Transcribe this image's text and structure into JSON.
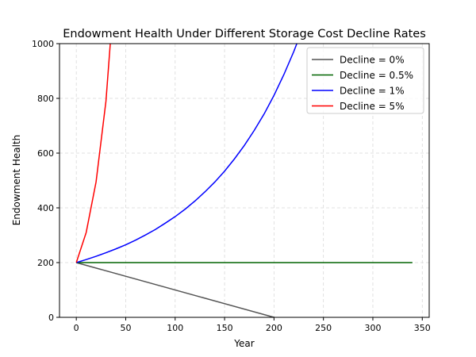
{
  "chart_data": {
    "type": "line",
    "title": "Endowment Health Under Different Storage Cost Decline Rates",
    "xlabel": "Year",
    "ylabel": "Endowment Health",
    "xlim": [
      -17,
      357
    ],
    "ylim": [
      0,
      1000
    ],
    "xticks": [
      0,
      50,
      100,
      150,
      200,
      250,
      300,
      350
    ],
    "yticks": [
      0,
      200,
      400,
      600,
      800,
      1000
    ],
    "grid": true,
    "grid_style": "dashed",
    "legend_position": "top-right",
    "series": [
      {
        "name": "Decline = 0%",
        "color": "#555555",
        "x": [
          0,
          200
        ],
        "y": [
          200,
          0
        ]
      },
      {
        "name": "Decline = 0.5%",
        "color": "#006400",
        "x": [
          0,
          340
        ],
        "y": [
          200,
          200
        ]
      },
      {
        "name": "Decline = 1%",
        "color": "#0000ff",
        "x": [
          0,
          10,
          20,
          30,
          40,
          50,
          60,
          70,
          80,
          90,
          100,
          110,
          120,
          130,
          140,
          150,
          160,
          170,
          180,
          190,
          200,
          210,
          220,
          230
        ],
        "y": [
          200,
          211,
          223,
          236,
          250,
          265,
          282,
          301,
          321,
          344,
          368,
          395,
          425,
          458,
          494,
          534,
          579,
          628,
          683,
          743,
          811,
          887,
          971,
          1065
        ]
      },
      {
        "name": "Decline = 5%",
        "color": "#ff0000",
        "x": [
          0,
          10,
          20,
          30,
          40
        ],
        "y": [
          200,
          310,
          495,
          790,
          1270
        ]
      }
    ]
  }
}
